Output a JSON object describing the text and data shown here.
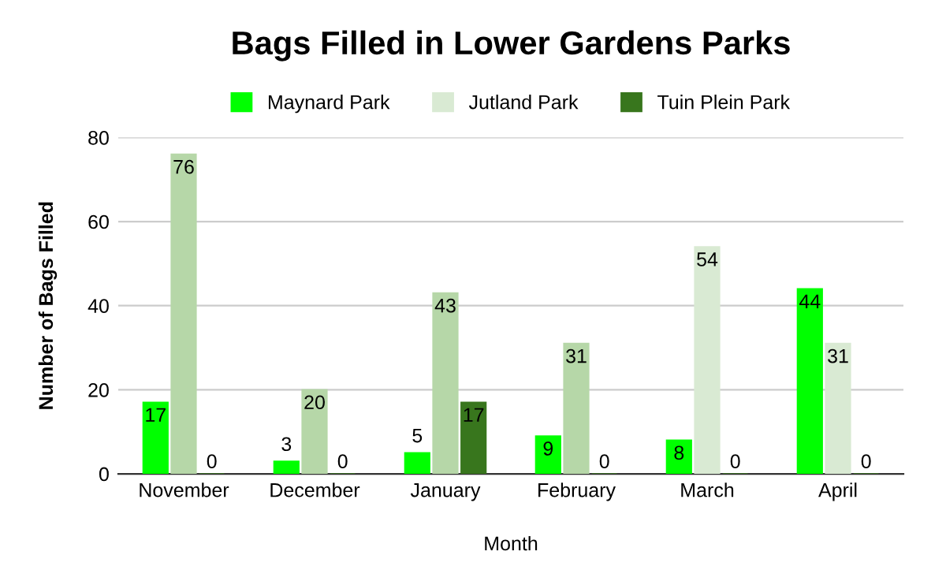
{
  "chart_data": {
    "type": "bar",
    "title": "Bags Filled in Lower Gardens Parks",
    "xlabel": "Month",
    "ylabel": "Number of Bags Filled",
    "categories": [
      "November",
      "December",
      "January",
      "February",
      "March",
      "April"
    ],
    "series": [
      {
        "name": "Maynard Park",
        "color": "#00ff00",
        "values": [
          17,
          3,
          5,
          9,
          8,
          44
        ]
      },
      {
        "name": "Jutland Park",
        "color": "#d9ead3",
        "colors": [
          "#b6d7a8",
          "#b6d7a8",
          "#b6d7a8",
          "#b6d7a8",
          "#d9ead3",
          "#d9ead3"
        ],
        "values": [
          76,
          20,
          43,
          31,
          54,
          31
        ]
      },
      {
        "name": "Tuin Plein Park",
        "color": "#38761d",
        "values": [
          0,
          0,
          17,
          0,
          0,
          0
        ]
      }
    ],
    "ylim": [
      0,
      80
    ],
    "yticks": [
      0,
      20,
      40,
      60,
      80
    ],
    "grid": "y",
    "legend": "top",
    "data_labels": true
  }
}
